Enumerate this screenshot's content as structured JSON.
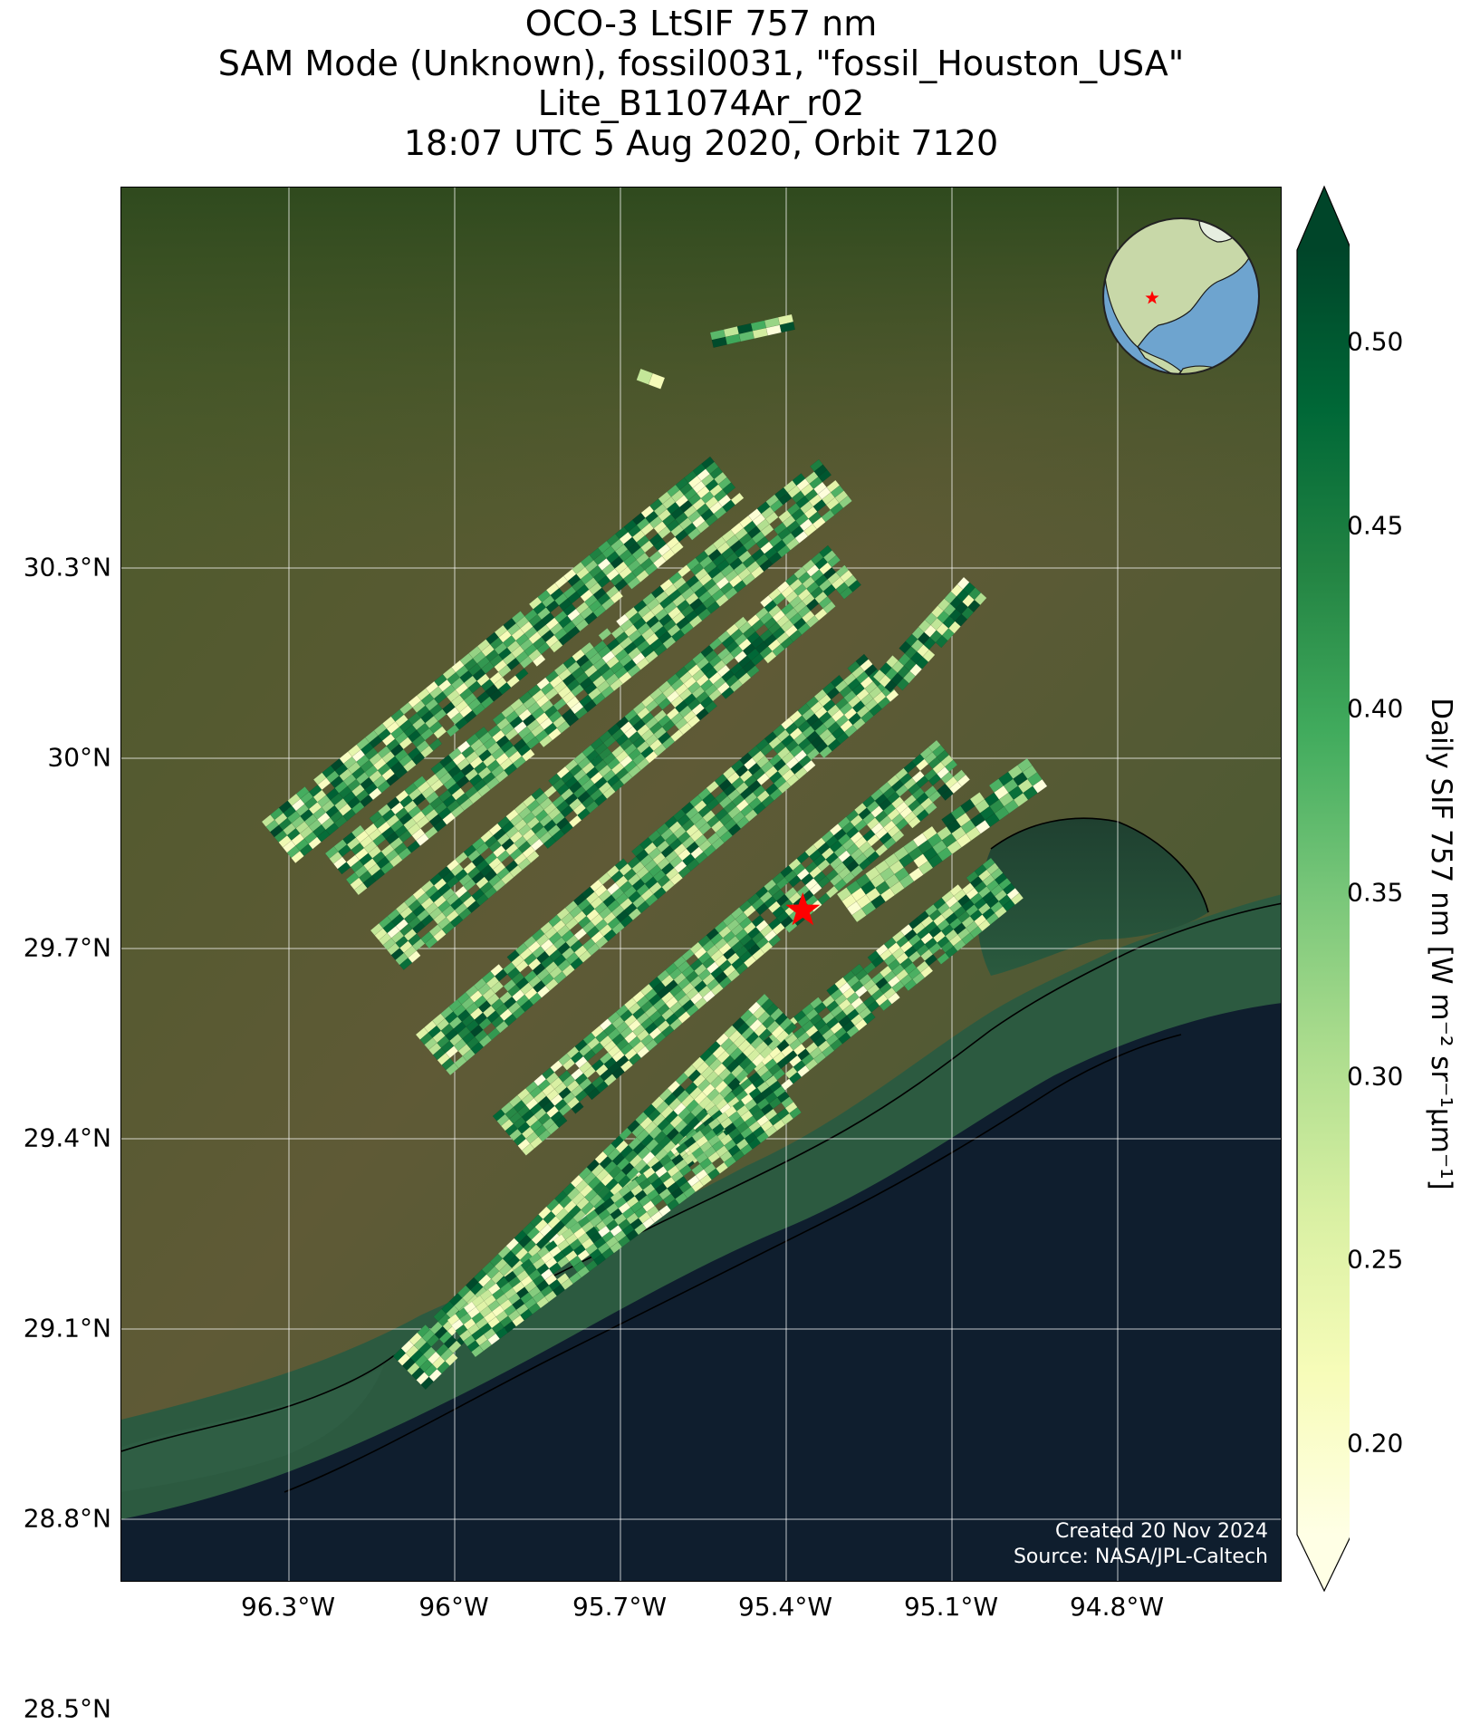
{
  "title_lines": [
    "OCO-3 LtSIF 757 nm",
    "SAM Mode (Unknown), fossil0031, \"fossil_Houston_USA\"",
    "Lite_B11074Ar_r02",
    "18:07 UTC 5 Aug 2020, Orbit 7120"
  ],
  "map": {
    "lat_labels": [
      "30.3°N",
      "30°N",
      "29.7°N",
      "29.4°N",
      "29.1°N",
      "28.8°N",
      "28.5°N"
    ],
    "lon_labels": [
      "96.3°W",
      "96°W",
      "95.7°W",
      "95.4°W",
      "95.1°W",
      "94.8°W"
    ],
    "lat_values": [
      30.3,
      30.0,
      29.7,
      29.4,
      29.1,
      28.8,
      28.5
    ],
    "lon_values": [
      -96.3,
      -96.0,
      -95.7,
      -95.4,
      -95.1,
      -94.8
    ],
    "target_marker": {
      "lat": 29.76,
      "lon": -95.37,
      "color": "#ff0000",
      "shape": "star"
    },
    "inset_globe": {
      "marker_color": "#ff0000",
      "marker_shape": "star",
      "ocean_color": "#6ea4cf",
      "land_color": "#c8d8a8"
    },
    "credit_line1": "Created 20 Nov 2024",
    "credit_line2": "Source: NASA/JPL-Caltech",
    "colors": {
      "land": "#4e5a2c",
      "ocean": "#0f1e2e",
      "gridline": "#ffffff",
      "coastline": "#000000"
    }
  },
  "colorbar": {
    "label": "Daily SIF 757 nm [W m⁻² sr⁻¹μm⁻¹]",
    "ticks": [
      "0.20",
      "0.25",
      "0.30",
      "0.35",
      "0.40",
      "0.45",
      "0.50"
    ],
    "tick_values": [
      0.2,
      0.25,
      0.3,
      0.35,
      0.4,
      0.45,
      0.5
    ],
    "vmin": 0.175,
    "vmax": 0.525,
    "colormap": "YlGn",
    "extend": "both"
  }
}
